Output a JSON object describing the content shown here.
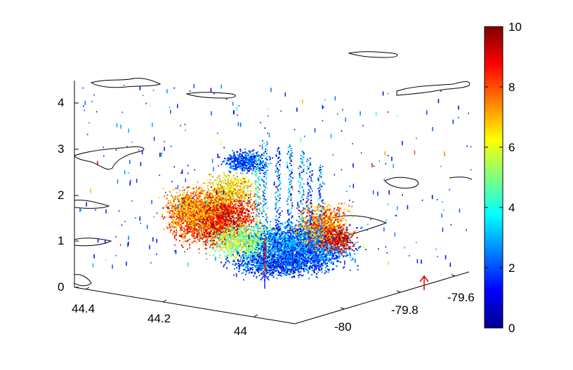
{
  "chart_data": {
    "type": "scatter",
    "subtype": "3d-volume-scatter",
    "title": "",
    "xlabel": "",
    "ylabel": "",
    "zlabel": "",
    "axes": {
      "latitude": {
        "ticks": [
          44.4,
          44.2,
          44
        ],
        "tick_labels": [
          "44.4",
          "44.2",
          "44"
        ],
        "range": [
          43.9,
          44.5
        ]
      },
      "longitude": {
        "ticks": [
          -80,
          -79.8,
          -79.6
        ],
        "tick_labels": [
          "-80",
          "-79.8",
          "-79.6"
        ],
        "range": [
          -80.15,
          -79.55
        ]
      },
      "height": {
        "ticks": [
          0,
          1,
          2,
          3,
          4
        ],
        "tick_labels": [
          "0",
          "1",
          "2",
          "3",
          "4"
        ],
        "range": [
          0,
          4.5
        ]
      }
    },
    "colorbar": {
      "colormap": "jet",
      "range": [
        0,
        10
      ],
      "ticks": [
        0,
        2,
        4,
        6,
        8,
        10
      ],
      "tick_labels": [
        "0",
        "2",
        "4",
        "6",
        "8",
        "10"
      ]
    },
    "grid": false,
    "markers": [
      {
        "kind": "arrow",
        "color": "#1a1aff",
        "location": "center-front-bottom"
      },
      {
        "kind": "arrow",
        "color": "#e00000",
        "location": "longitude-axis"
      }
    ],
    "colors": {
      "axis": "#000000",
      "outline": "#000000",
      "background": "#ffffff"
    }
  }
}
